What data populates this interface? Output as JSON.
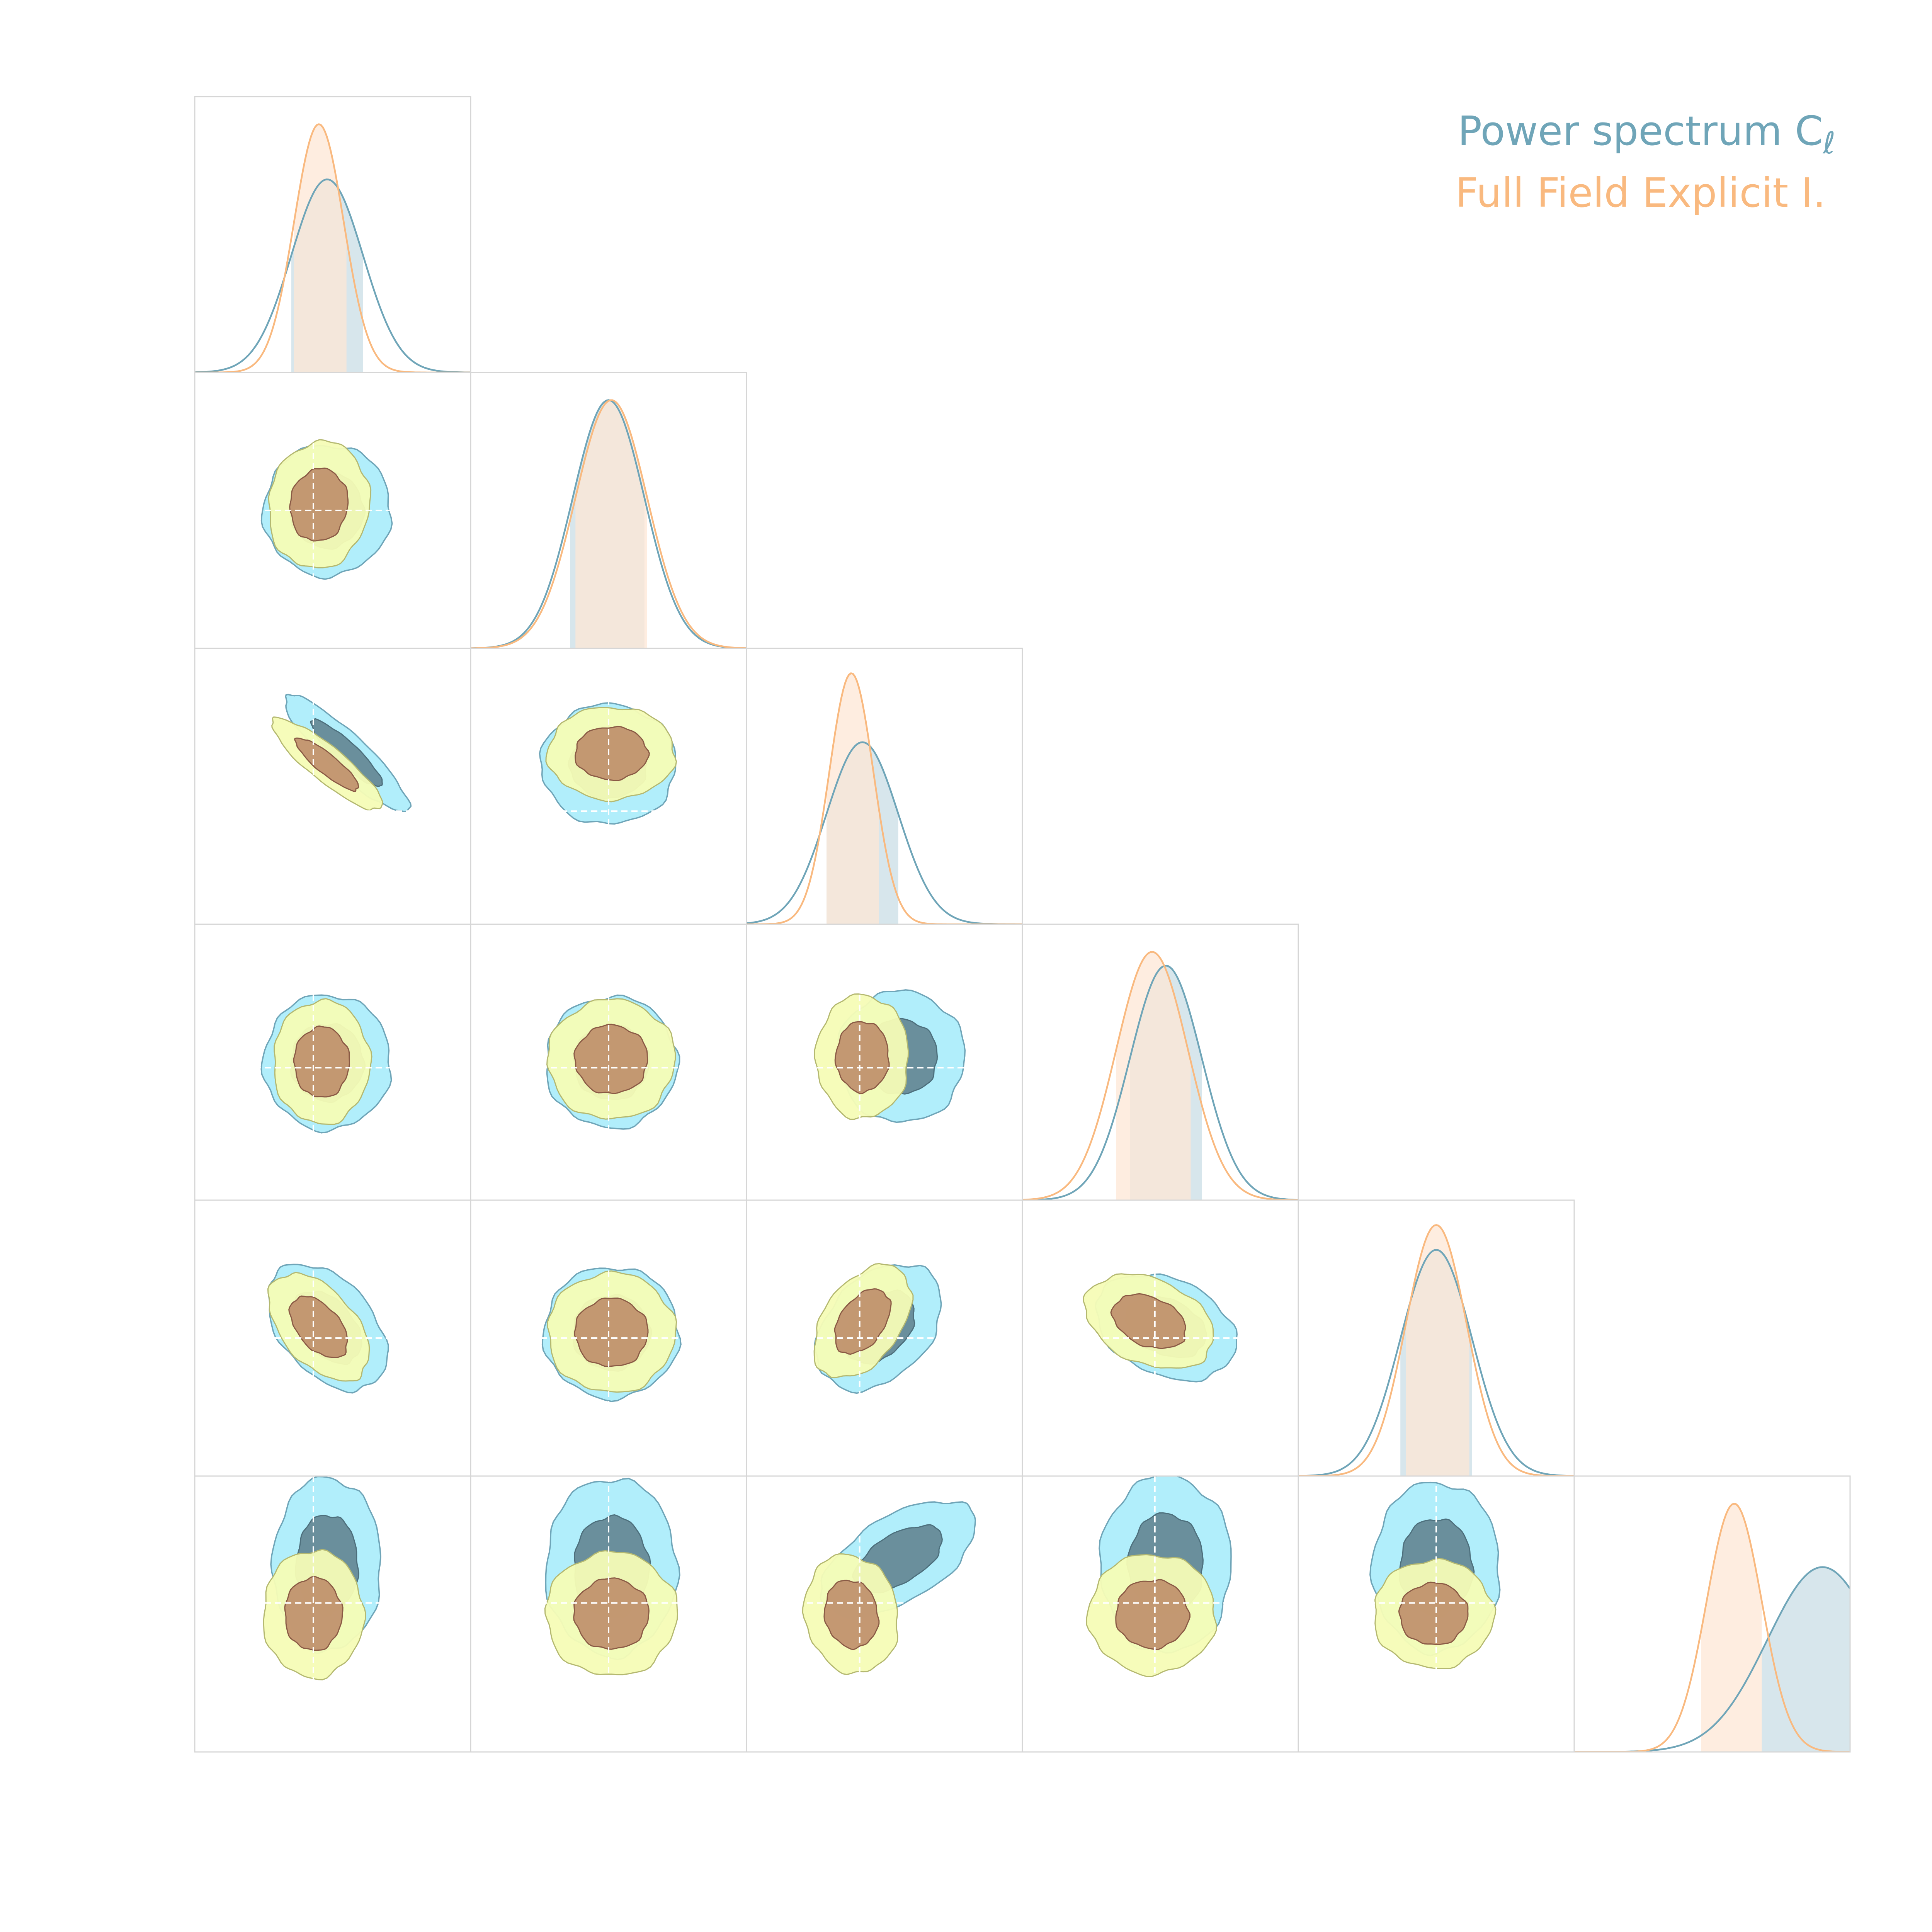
{
  "chart_data": {
    "type": "corner",
    "n_params": 6,
    "grid": true,
    "legend": {
      "placement": "top-right",
      "entries": [
        {
          "series": "ps",
          "label": "Power spectrum C",
          "subscript": "ℓ"
        },
        {
          "series": "ffi",
          "label": "Full Field Explicit I."
        }
      ]
    },
    "series": [
      {
        "key": "ps",
        "line_color": "#6fa5b8",
        "band_color": "#c9dde6",
        "contour_color_outer": "#b1eefb",
        "contour_color_inner": "#6a8f9c",
        "marginals": [
          {
            "mean": 0.48,
            "sigma": 0.13,
            "height": 0.7,
            "band": [
              0.35,
              0.61
            ]
          },
          {
            "mean": 0.5,
            "sigma": 0.13,
            "height": 0.9,
            "band": [
              0.36,
              0.63
            ]
          },
          {
            "mean": 0.42,
            "sigma": 0.13,
            "height": 0.66,
            "band": [
              0.29,
              0.55
            ]
          },
          {
            "mean": 0.52,
            "sigma": 0.13,
            "height": 0.85,
            "band": [
              0.39,
              0.65
            ]
          },
          {
            "mean": 0.5,
            "sigma": 0.13,
            "height": 0.82,
            "band": [
              0.37,
              0.63
            ]
          },
          {
            "mean": 0.9,
            "sigma": 0.2,
            "height": 0.67,
            "band": [
              0.68,
              1.0
            ]
          }
        ]
      },
      {
        "key": "ffi",
        "line_color": "#f9b97f",
        "band_color": "#fde7d5",
        "contour_color_outer": "#f5fcb6",
        "contour_color_inner": "#bf8f6b",
        "marginals": [
          {
            "mean": 0.45,
            "sigma": 0.09,
            "height": 0.9,
            "band": [
              0.36,
              0.55
            ]
          },
          {
            "mean": 0.51,
            "sigma": 0.13,
            "height": 0.9,
            "band": [
              0.38,
              0.64
            ]
          },
          {
            "mean": 0.38,
            "sigma": 0.08,
            "height": 0.91,
            "band": [
              0.29,
              0.48
            ]
          },
          {
            "mean": 0.47,
            "sigma": 0.13,
            "height": 0.9,
            "band": [
              0.34,
              0.61
            ]
          },
          {
            "mean": 0.5,
            "sigma": 0.11,
            "height": 0.91,
            "band": [
              0.39,
              0.62
            ]
          },
          {
            "mean": 0.58,
            "sigma": 0.1,
            "height": 0.9,
            "band": [
              0.46,
              0.68
            ]
          }
        ]
      }
    ],
    "truth": [
      0.43,
      0.5,
      0.41,
      0.48,
      0.5,
      0.54
    ],
    "pairs": [
      {
        "row": 1,
        "col": 0,
        "ps": {
          "mx": 0.48,
          "my": 0.5,
          "sx": 0.33,
          "sy": 0.34,
          "rot": 0.2
        },
        "ffi": {
          "mx": 0.45,
          "my": 0.48,
          "sx": 0.26,
          "sy": 0.33,
          "rot": 0.15
        }
      },
      {
        "row": 2,
        "col": 0,
        "ps": {
          "mx": 0.55,
          "my": 0.38,
          "sx": 0.43,
          "sy": 0.1,
          "rot": 0.75
        },
        "ffi": {
          "mx": 0.48,
          "my": 0.42,
          "sx": 0.36,
          "sy": 0.09,
          "rot": 0.68
        }
      },
      {
        "row": 2,
        "col": 1,
        "ps": {
          "mx": 0.5,
          "my": 0.42,
          "sx": 0.35,
          "sy": 0.31,
          "rot": 0.0
        },
        "ffi": {
          "mx": 0.51,
          "my": 0.38,
          "sx": 0.33,
          "sy": 0.24,
          "rot": 0.0
        }
      },
      {
        "row": 3,
        "col": 0,
        "ps": {
          "mx": 0.48,
          "my": 0.5,
          "sx": 0.33,
          "sy": 0.35,
          "rot": 0.0
        },
        "ffi": {
          "mx": 0.46,
          "my": 0.5,
          "sx": 0.25,
          "sy": 0.32,
          "rot": 0.0
        }
      },
      {
        "row": 3,
        "col": 1,
        "ps": {
          "mx": 0.51,
          "my": 0.5,
          "sx": 0.34,
          "sy": 0.34,
          "rot": 0.0
        },
        "ffi": {
          "mx": 0.51,
          "my": 0.49,
          "sx": 0.33,
          "sy": 0.31,
          "rot": 0.0
        }
      },
      {
        "row": 3,
        "col": 2,
        "ps": {
          "mx": 0.56,
          "my": 0.48,
          "sx": 0.33,
          "sy": 0.34,
          "rot": -0.1
        },
        "ffi": {
          "mx": 0.42,
          "my": 0.48,
          "sx": 0.24,
          "sy": 0.32,
          "rot": 0.0
        }
      },
      {
        "row": 4,
        "col": 0,
        "ps": {
          "mx": 0.48,
          "my": 0.46,
          "sx": 0.38,
          "sy": 0.24,
          "rot": 0.85
        },
        "ffi": {
          "mx": 0.45,
          "my": 0.46,
          "sx": 0.33,
          "sy": 0.19,
          "rot": 0.85
        }
      },
      {
        "row": 4,
        "col": 1,
        "ps": {
          "mx": 0.51,
          "my": 0.48,
          "sx": 0.35,
          "sy": 0.34,
          "rot": 0.0
        },
        "ffi": {
          "mx": 0.51,
          "my": 0.48,
          "sx": 0.33,
          "sy": 0.31,
          "rot": 0.0
        }
      },
      {
        "row": 4,
        "col": 2,
        "ps": {
          "mx": 0.48,
          "my": 0.46,
          "sx": 0.38,
          "sy": 0.26,
          "rot": -0.8
        },
        "ffi": {
          "mx": 0.42,
          "my": 0.44,
          "sx": 0.33,
          "sy": 0.2,
          "rot": -0.95
        }
      },
      {
        "row": 4,
        "col": 3,
        "ps": {
          "mx": 0.52,
          "my": 0.46,
          "sx": 0.38,
          "sy": 0.25,
          "rot": 0.4
        },
        "ffi": {
          "mx": 0.46,
          "my": 0.44,
          "sx": 0.35,
          "sy": 0.22,
          "rot": 0.4
        }
      },
      {
        "row": 5,
        "col": 0,
        "ps": {
          "mx": 0.48,
          "my": 0.32,
          "sx": 0.28,
          "sy": 0.45,
          "rot": 0.0
        },
        "ffi": {
          "mx": 0.43,
          "my": 0.5,
          "sx": 0.26,
          "sy": 0.33,
          "rot": 0.0
        }
      },
      {
        "row": 5,
        "col": 1,
        "ps": {
          "mx": 0.51,
          "my": 0.33,
          "sx": 0.34,
          "sy": 0.46,
          "rot": 0.0
        },
        "ffi": {
          "mx": 0.51,
          "my": 0.5,
          "sx": 0.34,
          "sy": 0.32,
          "rot": 0.0
        }
      },
      {
        "row": 5,
        "col": 2,
        "ps": {
          "mx": 0.55,
          "my": 0.3,
          "sx": 0.45,
          "sy": 0.22,
          "rot": -0.55
        },
        "ffi": {
          "mx": 0.38,
          "my": 0.5,
          "sx": 0.24,
          "sy": 0.31,
          "rot": -0.2
        }
      },
      {
        "row": 5,
        "col": 3,
        "ps": {
          "mx": 0.52,
          "my": 0.32,
          "sx": 0.34,
          "sy": 0.46,
          "rot": 0.0
        },
        "ffi": {
          "mx": 0.47,
          "my": 0.5,
          "sx": 0.33,
          "sy": 0.31,
          "rot": 0.0
        }
      },
      {
        "row": 5,
        "col": 4,
        "ps": {
          "mx": 0.5,
          "my": 0.33,
          "sx": 0.33,
          "sy": 0.44,
          "rot": 0.0
        },
        "ffi": {
          "mx": 0.49,
          "my": 0.5,
          "sx": 0.31,
          "sy": 0.28,
          "rot": 0.0
        }
      }
    ]
  }
}
